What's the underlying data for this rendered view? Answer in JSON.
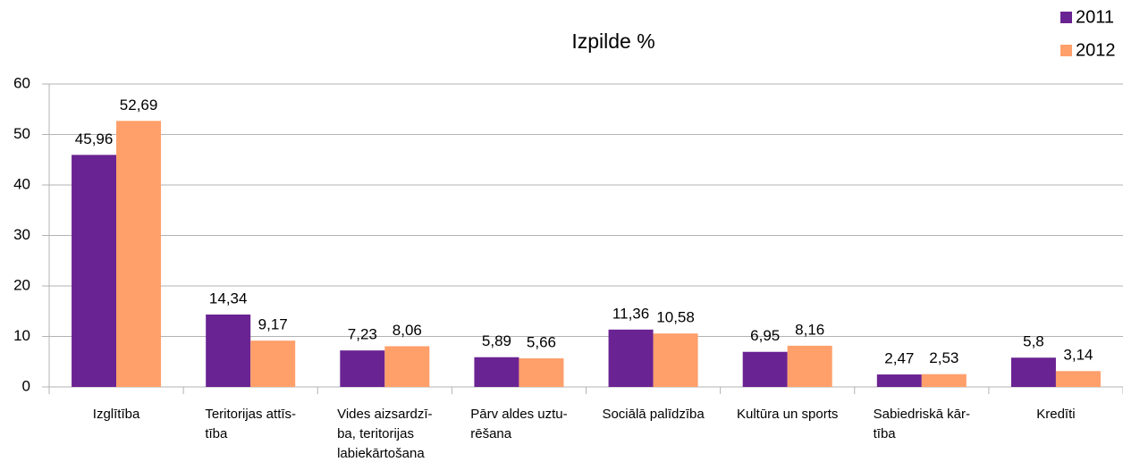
{
  "chart_data": {
    "type": "bar",
    "title": "Izpilde %",
    "categories": [
      "Izglītība",
      "Teritorijas attīs-\ntība",
      "Vides aizsardzī-\nba, teritorijas\nlabiekārtošana",
      "Pārv aldes uztu-\nrēšana",
      "Sociālā palīdzība",
      "Kultūra un sports",
      "Sabiedriskā kār-\ntība",
      "Kredīti"
    ],
    "series": [
      {
        "name": "2011",
        "color": "#6a2392",
        "values": [
          45.96,
          14.34,
          7.23,
          5.89,
          11.36,
          6.95,
          2.47,
          5.8
        ],
        "value_labels": [
          "45,96",
          "14,34",
          "7,23",
          "5,89",
          "11,36",
          "6,95",
          "2,47",
          "5,8"
        ]
      },
      {
        "name": "2012",
        "color": "#ff9f6a",
        "values": [
          52.69,
          9.17,
          8.06,
          5.66,
          10.58,
          8.16,
          2.53,
          3.14
        ],
        "value_labels": [
          "52,69",
          "9,17",
          "8,06",
          "5,66",
          "10,58",
          "8,16",
          "2,53",
          "3,14"
        ]
      }
    ],
    "ylim": [
      0,
      60
    ],
    "yticks": [
      0,
      10,
      20,
      30,
      40,
      50,
      60
    ],
    "grid": true,
    "legend": "top-right"
  }
}
